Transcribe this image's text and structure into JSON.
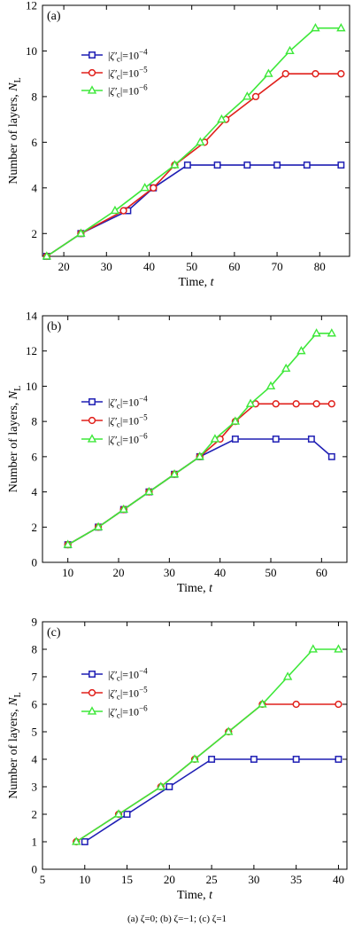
{
  "caption": "(a) ζ=0; (b) ζ=−1; (c) ζ=1",
  "colors": {
    "blue": "#1f1fb4",
    "red": "#e0201b",
    "green": "#3ee83a"
  },
  "chart_data": [
    {
      "type": "line",
      "panel_label": "(a)",
      "xlabel": "Time, t",
      "ylabel": "Number of layers, N_L",
      "xlim": [
        15,
        87
      ],
      "ylim": [
        1,
        12
      ],
      "xticks": [
        20,
        30,
        40,
        50,
        60,
        70,
        80
      ],
      "yticks": [
        2,
        4,
        6,
        8,
        10,
        12
      ],
      "legend_position": "upper-left",
      "series": [
        {
          "name": "|ζ′c|=10−4",
          "color": "#1f1fb4",
          "marker": "square",
          "x": [
            16,
            24,
            35,
            41,
            49,
            56,
            63,
            70,
            77,
            85
          ],
          "y": [
            1,
            2,
            3,
            4,
            5,
            5,
            5,
            5,
            5,
            5
          ]
        },
        {
          "name": "|ζ′c|=10−5",
          "color": "#e0201b",
          "marker": "circle",
          "x": [
            16,
            24,
            34,
            41,
            46,
            53,
            58,
            65,
            72,
            79,
            85
          ],
          "y": [
            1,
            2,
            3,
            4,
            5,
            6,
            7,
            8,
            9,
            9,
            9
          ]
        },
        {
          "name": "|ζ′c|=10−6",
          "color": "#3ee83a",
          "marker": "triangle",
          "x": [
            16,
            24,
            32,
            39,
            46,
            52,
            57,
            63,
            68,
            73,
            79,
            85
          ],
          "y": [
            1,
            2,
            3,
            4,
            5,
            6,
            7,
            8,
            9,
            10,
            11,
            11
          ]
        }
      ]
    },
    {
      "type": "line",
      "panel_label": "(b)",
      "xlabel": "Time, t",
      "ylabel": "Number of layers, N_L",
      "xlim": [
        5,
        65
      ],
      "ylim": [
        0,
        14
      ],
      "xticks": [
        10,
        20,
        30,
        40,
        50,
        60
      ],
      "yticks": [
        0,
        2,
        4,
        6,
        8,
        10,
        12,
        14
      ],
      "legend_position": "center-left",
      "series": [
        {
          "name": "|ζ′c|=10−4",
          "color": "#1f1fb4",
          "marker": "square",
          "x": [
            10,
            16,
            21,
            26,
            31,
            36,
            43,
            51,
            58,
            62
          ],
          "y": [
            1,
            2,
            3,
            4,
            5,
            6,
            7,
            7,
            7,
            6
          ]
        },
        {
          "name": "|ζ′c|=10−5",
          "color": "#e0201b",
          "marker": "circle",
          "x": [
            10,
            16,
            21,
            26,
            31,
            36,
            40,
            43,
            47,
            51,
            55,
            59,
            62
          ],
          "y": [
            1,
            2,
            3,
            4,
            5,
            6,
            7,
            8,
            9,
            9,
            9,
            9,
            9
          ]
        },
        {
          "name": "|ζ′c|=10−6",
          "color": "#3ee83a",
          "marker": "triangle",
          "x": [
            10,
            16,
            21,
            26,
            31,
            36,
            39,
            43,
            46,
            50,
            53,
            56,
            59,
            62
          ],
          "y": [
            1,
            2,
            3,
            4,
            5,
            6,
            7,
            8,
            9,
            10,
            11,
            12,
            13,
            13
          ]
        }
      ]
    },
    {
      "type": "line",
      "panel_label": "(c)",
      "xlabel": "Time, t",
      "ylabel": "Number of layers, N_L",
      "xlim": [
        5,
        41
      ],
      "ylim": [
        0,
        9
      ],
      "xticks": [
        5,
        10,
        15,
        20,
        25,
        30,
        35,
        40
      ],
      "yticks": [
        0,
        1,
        2,
        3,
        4,
        5,
        6,
        7,
        8,
        9
      ],
      "legend_position": "upper-left",
      "series": [
        {
          "name": "|ζ′c|=10−4",
          "color": "#1f1fb4",
          "marker": "square",
          "x": [
            10,
            15,
            20,
            25,
            30,
            35,
            40
          ],
          "y": [
            1,
            2,
            3,
            4,
            4,
            4,
            4
          ]
        },
        {
          "name": "|ζ′c|=10−5",
          "color": "#e0201b",
          "marker": "circle",
          "x": [
            9,
            14,
            19,
            23,
            27,
            31,
            35,
            40
          ],
          "y": [
            1,
            2,
            3,
            4,
            5,
            6,
            6,
            6
          ]
        },
        {
          "name": "|ζ′c|=10−6",
          "color": "#3ee83a",
          "marker": "triangle",
          "x": [
            9,
            14,
            19,
            23,
            27,
            31,
            34,
            37,
            40
          ],
          "y": [
            1,
            2,
            3,
            4,
            5,
            6,
            7,
            8,
            8
          ]
        }
      ]
    }
  ]
}
